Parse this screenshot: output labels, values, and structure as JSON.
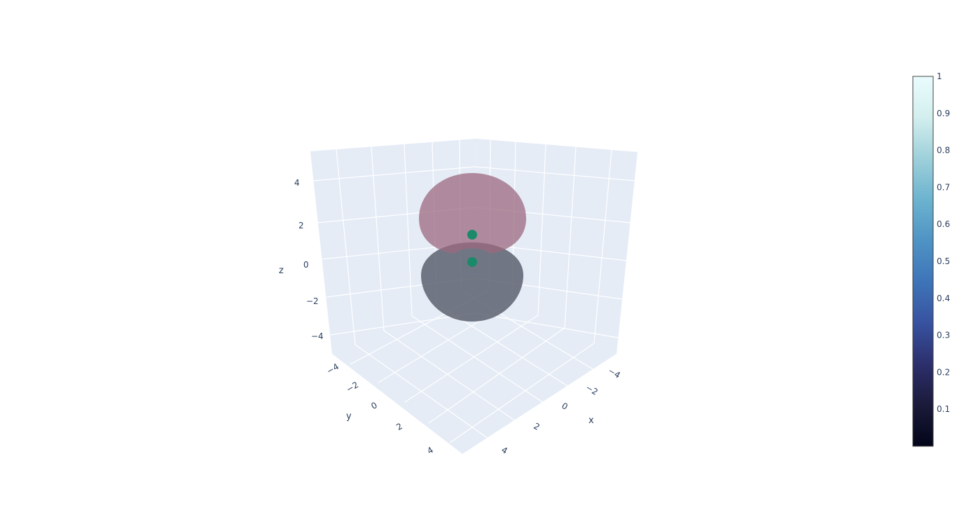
{
  "chart_data": {
    "type": "surface",
    "title": "",
    "axes": {
      "x": {
        "label": "x",
        "ticks": [
          "−4",
          "−2",
          "0",
          "2",
          "4"
        ],
        "range": [
          -5,
          5
        ]
      },
      "y": {
        "label": "y",
        "ticks": [
          "−4",
          "−2",
          "0",
          "2",
          "4"
        ],
        "range": [
          -5,
          5
        ]
      },
      "z": {
        "label": "z",
        "ticks": [
          "4",
          "2",
          "0",
          "−2",
          "−4"
        ],
        "range": [
          -5,
          5
        ]
      }
    },
    "grid": true,
    "background_color": "#e5ecf6",
    "lobes": [
      {
        "position": "upper",
        "z_range": [
          0.3,
          3.0
        ],
        "color": "#9c6a80",
        "opacity": 0.75
      },
      {
        "position": "lower",
        "z_range": [
          -2.4,
          0.3
        ],
        "color": "#5d6270",
        "opacity": 0.85
      }
    ],
    "markers": [
      {
        "x": 0,
        "y": 0,
        "z": 0.75,
        "color": "#1a8a6a"
      },
      {
        "x": 0,
        "y": 0,
        "z": -0.75,
        "color": "#1a8a6a"
      }
    ],
    "colorbar": {
      "colorscale": "ice",
      "ticks": [
        "1",
        "0.9",
        "0.8",
        "0.7",
        "0.6",
        "0.5",
        "0.4",
        "0.3",
        "0.2",
        "0.1"
      ],
      "range": [
        0,
        1
      ],
      "colors": [
        "#03051a",
        "#1b1a3a",
        "#2c2f6c",
        "#3852a0",
        "#3e74b8",
        "#4f93c4",
        "#6cb3cf",
        "#9ed0da",
        "#d3eeee",
        "#eafcfd"
      ]
    }
  }
}
